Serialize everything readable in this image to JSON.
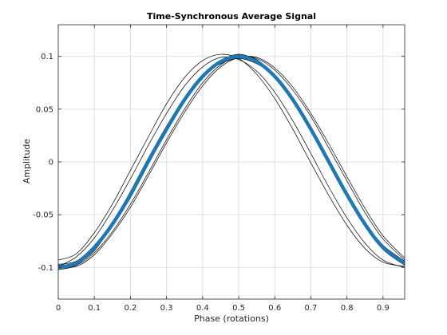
{
  "chart_data": {
    "type": "line",
    "title": "Time-Synchronous Average Signal",
    "xlabel": "Phase (rotations)",
    "ylabel": "Amplitude",
    "xlim": [
      0,
      0.96
    ],
    "ylim": [
      -0.13,
      0.13
    ],
    "grid": true,
    "legend": "none",
    "x_ticks": [
      0,
      0.1,
      0.2,
      0.3,
      0.4,
      0.5,
      0.6,
      0.7,
      0.8,
      0.9
    ],
    "x_tick_labels": [
      "0",
      "0.1",
      "0.2",
      "0.3",
      "0.4",
      "0.5",
      "0.6",
      "0.7",
      "0.8",
      "0.9"
    ],
    "y_ticks": [
      -0.1,
      -0.05,
      0,
      0.05,
      0.1
    ],
    "y_tick_labels": [
      "-0.1",
      "-0.05",
      "0",
      "0.05",
      "0.1"
    ],
    "average_series": {
      "color": "#1f77b4",
      "x": [
        0,
        0.05,
        0.1,
        0.15,
        0.2,
        0.25,
        0.3,
        0.35,
        0.4,
        0.45,
        0.5,
        0.55,
        0.6,
        0.65,
        0.7,
        0.75,
        0.8,
        0.85,
        0.9,
        0.96
      ],
      "values": [
        -0.1,
        -0.096,
        -0.081,
        -0.059,
        -0.031,
        0.001,
        0.031,
        0.059,
        0.081,
        0.095,
        0.1,
        0.095,
        0.081,
        0.059,
        0.031,
        0.0,
        -0.031,
        -0.059,
        -0.081,
        -0.096
      ]
    },
    "individual_series": {
      "color": "#000000",
      "count": 16,
      "x": [
        0,
        0.05,
        0.1,
        0.15,
        0.2,
        0.25,
        0.3,
        0.35,
        0.4,
        0.45,
        0.5,
        0.55,
        0.6,
        0.65,
        0.7,
        0.75,
        0.8,
        0.85,
        0.9,
        0.96
      ],
      "values": [
        [
          -0.098,
          -0.095,
          -0.08,
          -0.058,
          -0.03,
          0.002,
          0.032,
          0.06,
          0.082,
          0.096,
          0.101,
          0.096,
          0.082,
          0.06,
          0.032,
          0.001,
          -0.03,
          -0.058,
          -0.08,
          -0.095
        ],
        [
          -0.1,
          -0.097,
          -0.083,
          -0.061,
          -0.034,
          -0.002,
          0.029,
          0.057,
          0.079,
          0.094,
          0.099,
          0.094,
          0.08,
          0.058,
          0.03,
          -0.001,
          -0.033,
          -0.06,
          -0.082,
          -0.097
        ],
        [
          -0.093,
          -0.087,
          -0.067,
          -0.04,
          -0.008,
          0.024,
          0.055,
          0.08,
          0.096,
          0.102,
          0.098,
          0.083,
          0.06,
          0.031,
          -0.001,
          -0.032,
          -0.06,
          -0.082,
          -0.095,
          -0.099
        ],
        [
          -0.099,
          -0.09,
          -0.072,
          -0.046,
          -0.016,
          0.016,
          0.046,
          0.072,
          0.09,
          0.099,
          0.097,
          0.086,
          0.066,
          0.039,
          0.008,
          -0.024,
          -0.053,
          -0.077,
          -0.093,
          -0.1
        ],
        [
          -0.101,
          -0.098,
          -0.086,
          -0.066,
          -0.04,
          -0.01,
          0.021,
          0.05,
          0.075,
          0.092,
          0.1,
          0.098,
          0.087,
          0.068,
          0.043,
          0.013,
          -0.018,
          -0.048,
          -0.073,
          -0.093
        ],
        [
          -0.1,
          -0.099,
          -0.088,
          -0.068,
          -0.043,
          -0.013,
          0.018,
          0.047,
          0.072,
          0.09,
          0.099,
          0.099,
          0.089,
          0.071,
          0.046,
          0.017,
          -0.014,
          -0.044,
          -0.07,
          -0.091
        ],
        [
          -0.097,
          -0.094,
          -0.079,
          -0.057,
          -0.029,
          0.003,
          0.033,
          0.061,
          0.082,
          0.095,
          0.102,
          0.096,
          0.081,
          0.059,
          0.032,
          0.002,
          -0.029,
          -0.058,
          -0.079,
          -0.094
        ],
        [
          -0.101,
          -0.097,
          -0.084,
          -0.06,
          -0.033,
          0.0,
          0.03,
          0.058,
          0.08,
          0.095,
          0.1,
          0.095,
          0.081,
          0.06,
          0.029,
          0.0,
          -0.032,
          -0.06,
          -0.081,
          -0.097
        ],
        [
          -0.098,
          -0.096,
          -0.082,
          -0.061,
          -0.031,
          0.0,
          0.03,
          0.057,
          0.081,
          0.093,
          0.098,
          0.093,
          0.081,
          0.058,
          0.032,
          0.001,
          -0.031,
          -0.057,
          -0.081,
          -0.095
        ],
        [
          -0.099,
          -0.095,
          -0.081,
          -0.058,
          -0.032,
          0.001,
          0.031,
          0.059,
          0.08,
          0.096,
          0.101,
          0.097,
          0.081,
          0.059,
          0.03,
          0.0,
          -0.03,
          -0.059,
          -0.082,
          -0.096
        ],
        [
          -0.102,
          -0.098,
          -0.082,
          -0.058,
          -0.028,
          0.004,
          0.034,
          0.061,
          0.082,
          0.096,
          0.102,
          0.096,
          0.082,
          0.06,
          0.031,
          -0.002,
          -0.033,
          -0.061,
          -0.083,
          -0.098
        ],
        [
          -0.099,
          -0.096,
          -0.08,
          -0.06,
          -0.031,
          0.001,
          0.033,
          0.058,
          0.082,
          0.094,
          0.1,
          0.095,
          0.082,
          0.058,
          0.031,
          0.001,
          -0.031,
          -0.058,
          -0.079,
          -0.096
        ],
        [
          -0.1,
          -0.096,
          -0.082,
          -0.06,
          -0.03,
          0.002,
          0.032,
          0.059,
          0.081,
          0.095,
          0.1,
          0.095,
          0.08,
          0.059,
          0.031,
          0.0,
          -0.031,
          -0.059,
          -0.081,
          -0.096
        ],
        [
          -0.101,
          -0.097,
          -0.081,
          -0.059,
          -0.032,
          0.0,
          0.031,
          0.06,
          0.08,
          0.095,
          0.1,
          0.095,
          0.08,
          0.059,
          0.031,
          0.001,
          -0.031,
          -0.059,
          -0.08,
          -0.097
        ],
        [
          -0.099,
          -0.095,
          -0.081,
          -0.06,
          -0.031,
          0.001,
          0.031,
          0.059,
          0.081,
          0.096,
          0.101,
          0.095,
          0.081,
          0.06,
          0.031,
          0.0,
          -0.031,
          -0.06,
          -0.081,
          -0.095
        ],
        [
          -0.1,
          -0.097,
          -0.082,
          -0.06,
          -0.032,
          0.0,
          0.031,
          0.058,
          0.08,
          0.094,
          0.099,
          0.094,
          0.08,
          0.058,
          0.03,
          -0.001,
          -0.032,
          -0.06,
          -0.081,
          -0.097
        ]
      ]
    }
  }
}
